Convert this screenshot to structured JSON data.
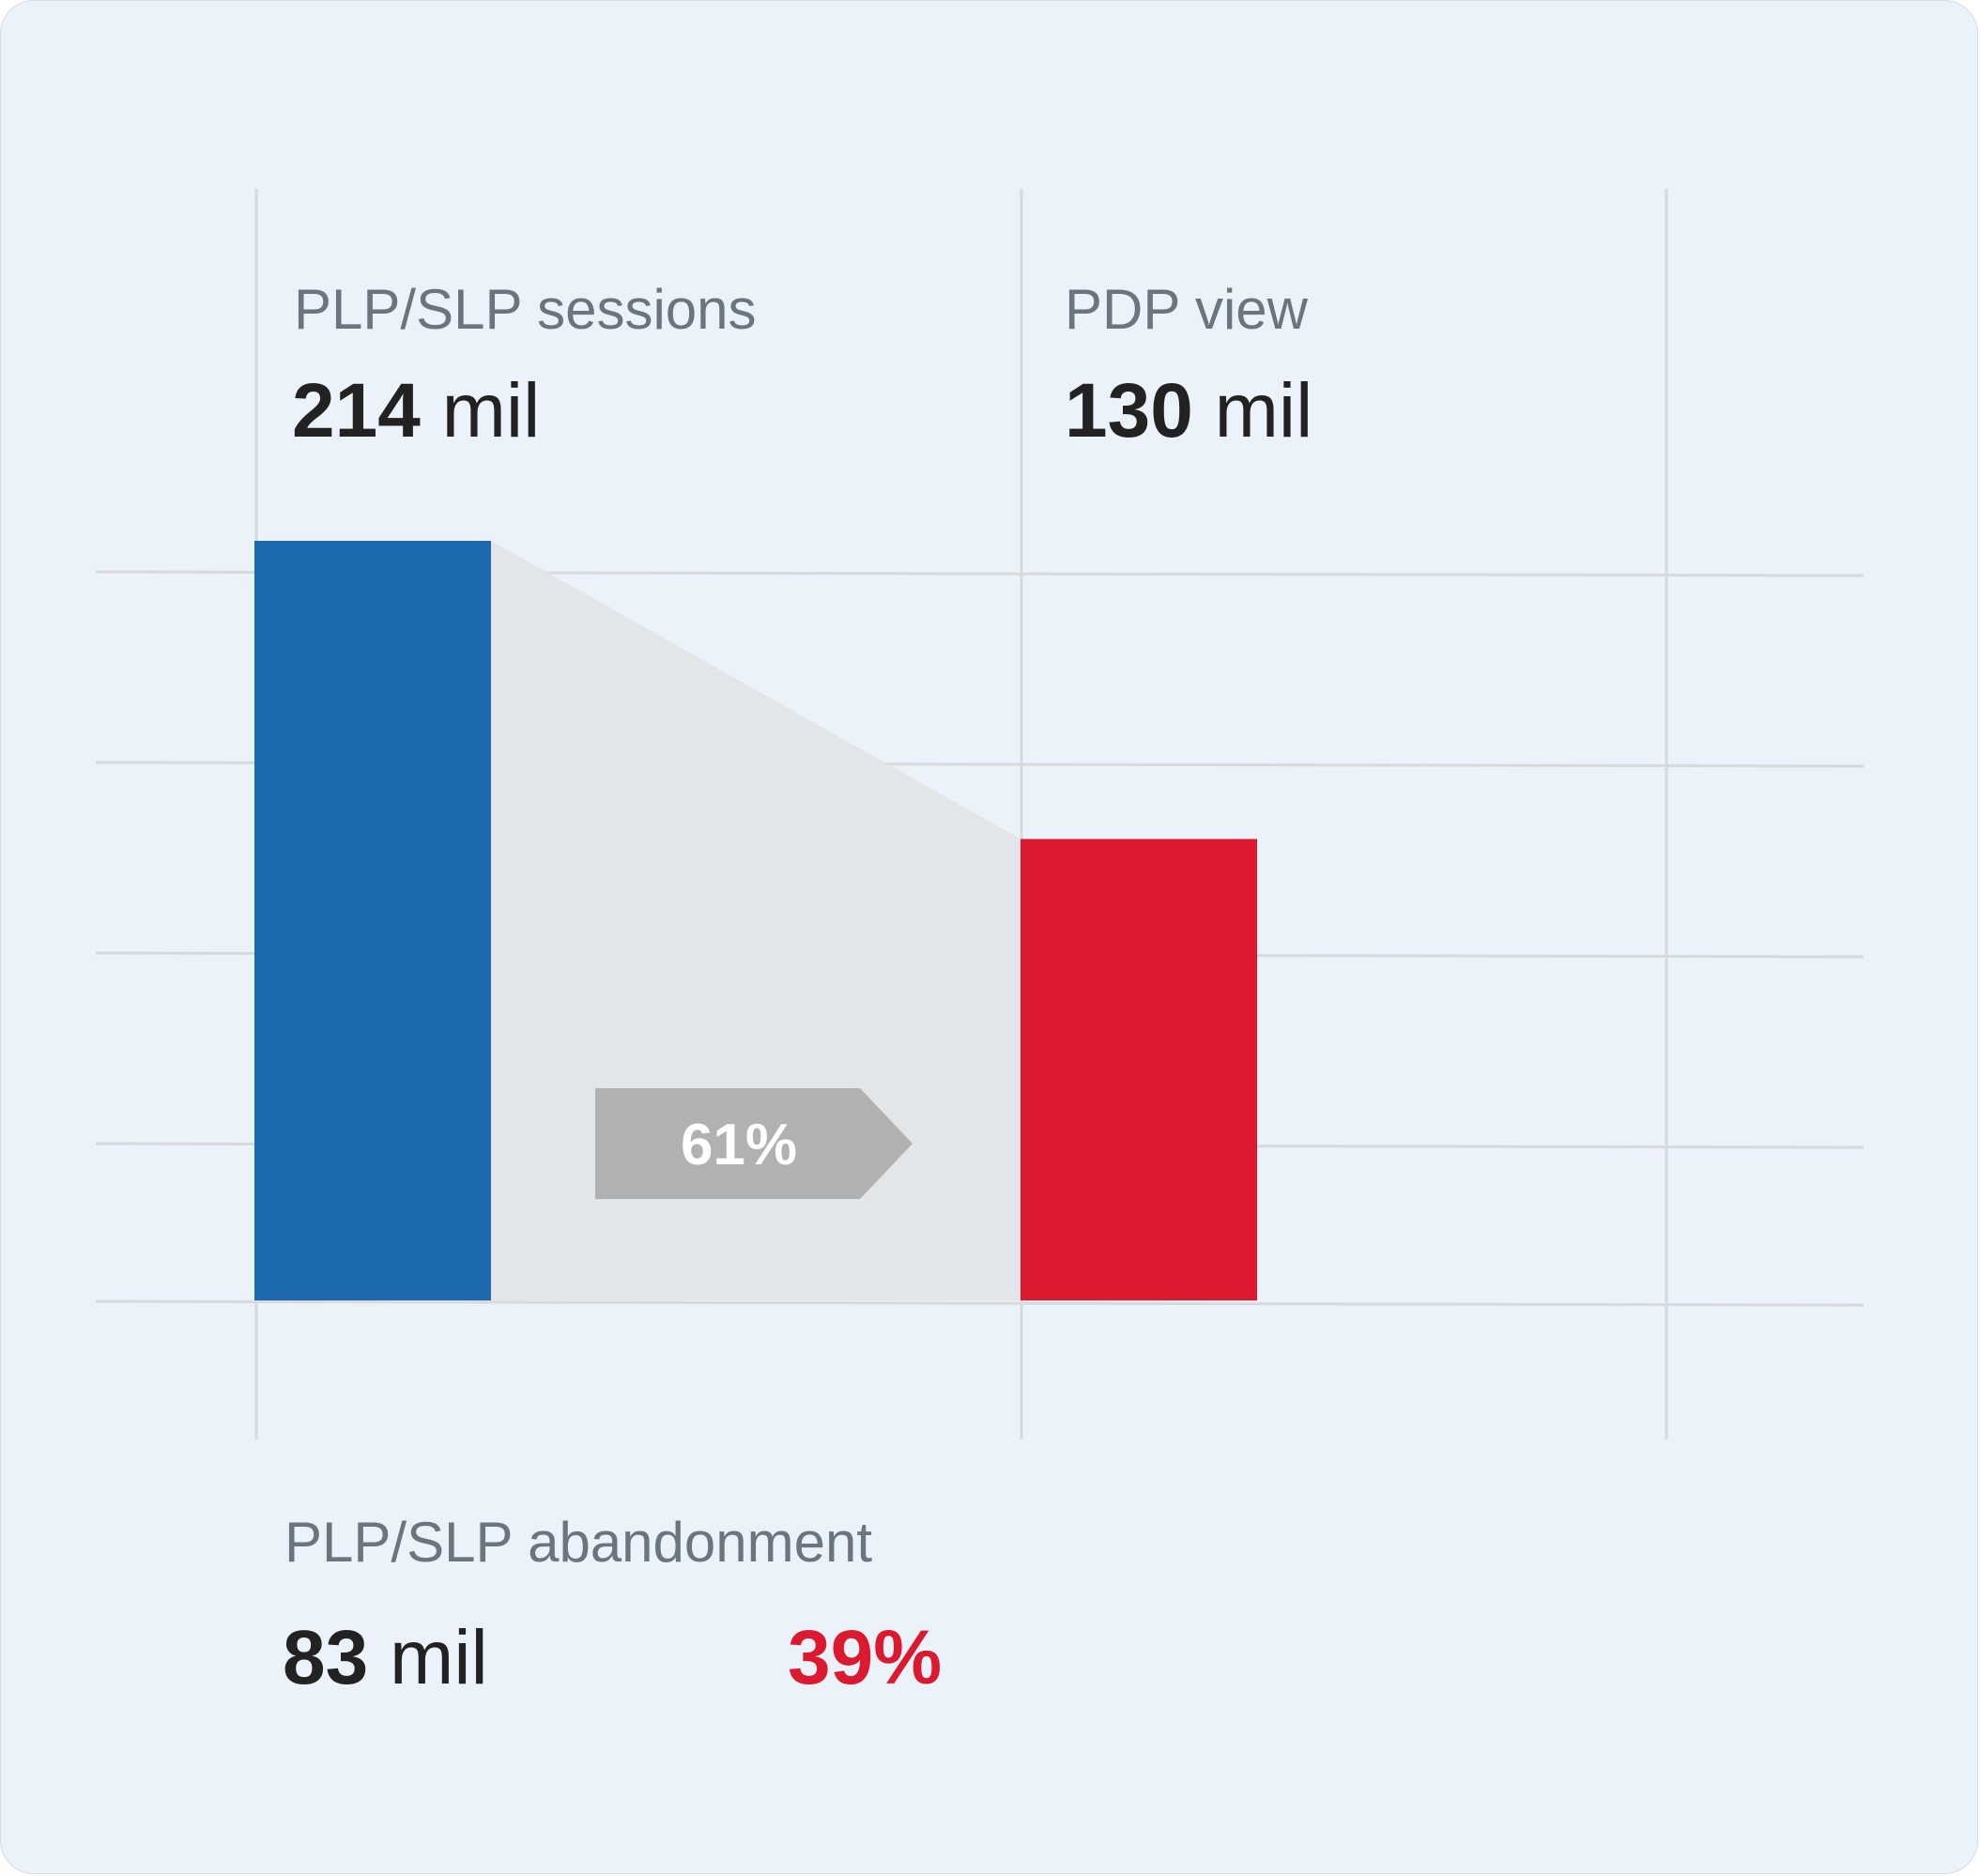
{
  "chart_data": {
    "type": "bar",
    "categories": [
      "PLP/SLP sessions",
      "PDP view"
    ],
    "values": [
      214,
      130
    ],
    "value_labels": [
      {
        "number": "214",
        "unit": "mil"
      },
      {
        "number": "130",
        "unit": "mil"
      }
    ],
    "bar_colors": [
      "#1d6aaf",
      "#dc1a2f"
    ],
    "ylim": [
      0,
      214
    ],
    "grid": true,
    "conversion": {
      "label": "61%",
      "value": 61,
      "color": "#b0b1b0"
    },
    "abandonment": {
      "label": "PLP/SLP abandonment",
      "number": "83",
      "unit": "mil",
      "value": 83,
      "percent_label": "39%",
      "percent_value": 39,
      "percent_color": "#dc1a2f"
    }
  }
}
